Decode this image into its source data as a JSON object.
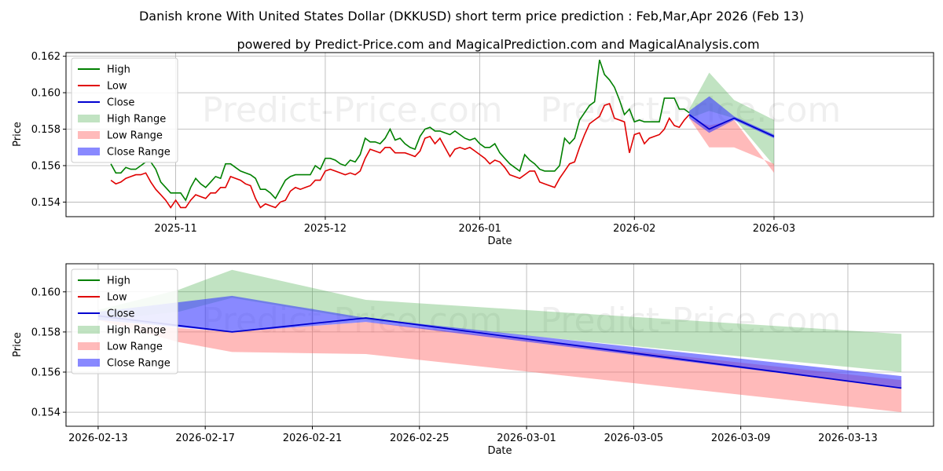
{
  "title": "Danish krone With United States Dollar (DKKUSD) short term price prediction : Feb,Mar,Apr 2026 (Feb 13)",
  "subtitle": "powered by Predict-Price.com and MagicalPrediction.com and MagicalAnalysis.com",
  "watermark": "Predict-Price.com",
  "colors": {
    "high": "#008000",
    "low": "#e00000",
    "close": "#0000d0",
    "high_range": "#4caf50",
    "low_range": "#ff6666",
    "close_range": "#3a3aff"
  },
  "chart_data": [
    {
      "type": "line",
      "name": "history",
      "xlabel": "Date",
      "ylabel": "Price",
      "ylim": [
        0.1532,
        0.1622
      ],
      "yticks": [
        "0.154",
        "0.156",
        "0.158",
        "0.160",
        "0.162"
      ],
      "ytick_values": [
        0.154,
        0.156,
        0.158,
        0.16,
        0.162
      ],
      "xlim_day": [
        -22,
        152
      ],
      "xticks": [
        "2025-11",
        "2025-12",
        "2026-01",
        "2026-02",
        "2026-03"
      ],
      "xtick_days": [
        0,
        30,
        61,
        92,
        120
      ],
      "legend": [
        "High",
        "Low",
        "Close",
        "High Range",
        "Low Range",
        "Close Range"
      ],
      "legend_position": "upper-left",
      "grid": true,
      "high": {
        "day": [
          -13,
          -12,
          -11,
          -10,
          -9,
          -8,
          -7,
          -6,
          -5,
          -4,
          -3,
          -2,
          -1,
          0,
          1,
          2,
          3,
          4,
          5,
          6,
          7,
          8,
          9,
          10,
          11,
          12,
          13,
          14,
          15,
          16,
          17,
          18,
          19,
          20,
          21,
          22,
          23,
          24,
          25,
          26,
          27,
          28,
          29,
          30,
          31,
          32,
          33,
          34,
          35,
          36,
          37,
          38,
          39,
          40,
          41,
          42,
          43,
          44,
          45,
          46,
          47,
          48,
          49,
          50,
          51,
          52,
          53,
          54,
          55,
          56,
          57,
          58,
          59,
          60,
          61,
          62,
          63,
          64,
          65,
          66,
          67,
          68,
          69,
          70,
          71,
          72,
          73,
          74,
          75,
          76,
          77,
          78,
          79,
          80,
          81,
          82,
          83,
          84,
          85,
          86,
          87,
          88,
          89,
          90,
          91,
          92,
          93,
          94,
          95,
          96,
          97,
          98,
          99,
          100,
          101,
          102,
          103
        ],
        "values": [
          0.1561,
          0.1556,
          0.1556,
          0.1559,
          0.1558,
          0.1558,
          0.156,
          0.1562,
          0.1562,
          0.1558,
          0.1551,
          0.1548,
          0.1545,
          0.1545,
          0.1545,
          0.1541,
          0.1548,
          0.1553,
          0.155,
          0.1548,
          0.1551,
          0.1554,
          0.1553,
          0.1561,
          0.1561,
          0.1559,
          0.1557,
          0.1556,
          0.1555,
          0.1553,
          0.1547,
          0.1547,
          0.1545,
          0.1542,
          0.1547,
          0.1552,
          0.1554,
          0.1555,
          0.1555,
          0.1555,
          0.1555,
          0.156,
          0.1558,
          0.1564,
          0.1564,
          0.1563,
          0.1561,
          0.156,
          0.1563,
          0.1562,
          0.1566,
          0.1575,
          0.1573,
          0.1573,
          0.1572,
          0.1575,
          0.158,
          0.1574,
          0.1575,
          0.1572,
          0.157,
          0.1569,
          0.1576,
          0.158,
          0.1581,
          0.1579,
          0.1579,
          0.1578,
          0.1577,
          0.1579,
          0.1577,
          0.1575,
          0.1574,
          0.1575,
          0.1572,
          0.157,
          0.157,
          0.1572,
          0.1567,
          0.1564,
          0.1561,
          0.1559,
          0.1557,
          0.1566,
          0.1563,
          0.1561,
          0.1558,
          0.1557,
          0.1557,
          0.1557,
          0.156,
          0.1575,
          0.1572,
          0.1575,
          0.1585,
          0.1589,
          0.1593,
          0.1595,
          0.1618,
          0.161,
          0.1607,
          0.1603,
          0.1596,
          0.1588,
          0.1591,
          0.1584,
          0.1585,
          0.1584,
          0.1584,
          0.1584,
          0.1584,
          0.1597,
          0.1597,
          0.1597,
          0.1591,
          0.1591,
          0.1589
        ],
        "range_upper_day": [
          103,
          107,
          112,
          120
        ],
        "range_upper": [
          0.1591,
          0.1611,
          0.1596,
          0.1585
        ]
      },
      "low": {
        "day": [
          -13,
          -12,
          -11,
          -10,
          -9,
          -8,
          -7,
          -6,
          -5,
          -4,
          -3,
          -2,
          -1,
          0,
          1,
          2,
          3,
          4,
          5,
          6,
          7,
          8,
          9,
          10,
          11,
          12,
          13,
          14,
          15,
          16,
          17,
          18,
          19,
          20,
          21,
          22,
          23,
          24,
          25,
          26,
          27,
          28,
          29,
          30,
          31,
          32,
          33,
          34,
          35,
          36,
          37,
          38,
          39,
          40,
          41,
          42,
          43,
          44,
          45,
          46,
          47,
          48,
          49,
          50,
          51,
          52,
          53,
          54,
          55,
          56,
          57,
          58,
          59,
          60,
          61,
          62,
          63,
          64,
          65,
          66,
          67,
          68,
          69,
          70,
          71,
          72,
          73,
          74,
          75,
          76,
          77,
          78,
          79,
          80,
          81,
          82,
          83,
          84,
          85,
          86,
          87,
          88,
          89,
          90,
          91,
          92,
          93,
          94,
          95,
          96,
          97,
          98,
          99,
          100,
          101,
          102,
          103
        ],
        "values": [
          0.1552,
          0.155,
          0.1551,
          0.1553,
          0.1554,
          0.1555,
          0.1555,
          0.1556,
          0.1551,
          0.1547,
          0.1544,
          0.1541,
          0.1537,
          0.1541,
          0.1537,
          0.1537,
          0.1541,
          0.1544,
          0.1543,
          0.1542,
          0.1545,
          0.1545,
          0.1548,
          0.1548,
          0.1554,
          0.1553,
          0.1552,
          0.155,
          0.1549,
          0.1542,
          0.1537,
          0.1539,
          0.1538,
          0.1537,
          0.154,
          0.1541,
          0.1546,
          0.1548,
          0.1547,
          0.1548,
          0.1549,
          0.1552,
          0.1552,
          0.1557,
          0.1558,
          0.1557,
          0.1556,
          0.1555,
          0.1556,
          0.1555,
          0.1557,
          0.1564,
          0.1569,
          0.1568,
          0.1567,
          0.157,
          0.157,
          0.1567,
          0.1567,
          0.1567,
          0.1566,
          0.1565,
          0.1568,
          0.1575,
          0.1576,
          0.1572,
          0.1575,
          0.157,
          0.1565,
          0.1569,
          0.157,
          0.1569,
          0.157,
          0.1568,
          0.1566,
          0.1564,
          0.1561,
          0.1563,
          0.1562,
          0.1559,
          0.1555,
          0.1554,
          0.1553,
          0.1555,
          0.1557,
          0.1557,
          0.1551,
          0.155,
          0.1549,
          0.1548,
          0.1553,
          0.1557,
          0.1561,
          0.1562,
          0.157,
          0.1577,
          0.1583,
          0.1585,
          0.1587,
          0.1593,
          0.1594,
          0.1586,
          0.1585,
          0.1584,
          0.1567,
          0.1577,
          0.1578,
          0.1572,
          0.1575,
          0.1576,
          0.1577,
          0.158,
          0.1586,
          0.1582,
          0.1581,
          0.1585,
          0.1588
        ],
        "range_lower_day": [
          103,
          107,
          112,
          120
        ],
        "range_lower": [
          0.1586,
          0.157,
          0.157,
          0.1561
        ]
      },
      "close": {
        "day": [
          103,
          107,
          112,
          120
        ],
        "values": [
          0.1588,
          0.158,
          0.1586,
          0.1576
        ],
        "range_upper": [
          0.159,
          0.1598,
          0.1587,
          0.1577
        ],
        "range_lower": [
          0.1586,
          0.1578,
          0.1585,
          0.1575
        ]
      }
    },
    {
      "type": "line",
      "name": "forecast",
      "xlabel": "Date",
      "ylabel": "Price",
      "ylim": [
        0.1533,
        0.1614
      ],
      "yticks": [
        "0.154",
        "0.156",
        "0.158",
        "0.160"
      ],
      "ytick_values": [
        0.154,
        0.156,
        0.158,
        0.16
      ],
      "xlim_day": [
        -1.2,
        31.2
      ],
      "xticks": [
        "2026-02-13",
        "2026-02-17",
        "2026-02-21",
        "2026-02-25",
        "2026-03-01",
        "2026-03-05",
        "2026-03-09",
        "2026-03-13"
      ],
      "xtick_days": [
        0,
        4,
        8,
        12,
        16,
        20,
        24,
        28
      ],
      "legend": [
        "High",
        "Low",
        "Close",
        "High Range",
        "Low Range",
        "Close Range"
      ],
      "legend_position": "upper-left",
      "grid": true,
      "high_range": {
        "day": [
          0,
          3,
          5,
          10,
          30
        ],
        "upper": [
          0.1591,
          0.1601,
          0.1611,
          0.1596,
          0.1579
        ],
        "lower": [
          0.1586,
          0.159,
          0.1597,
          0.1586,
          0.156
        ]
      },
      "low_range": {
        "day": [
          0,
          3,
          5,
          10,
          30
        ],
        "upper": [
          0.1586,
          0.1582,
          0.158,
          0.1585,
          0.1556
        ],
        "lower": [
          0.1586,
          0.1575,
          0.157,
          0.1569,
          0.154
        ]
      },
      "close_range": {
        "day": [
          0,
          5,
          10,
          30
        ],
        "upper": [
          0.159,
          0.1598,
          0.1587,
          0.1558
        ],
        "lower": [
          0.1586,
          0.158,
          0.1585,
          0.1552
        ]
      },
      "close": {
        "day": [
          0,
          5,
          10,
          30
        ],
        "values": [
          0.1588,
          0.158,
          0.1587,
          0.1552
        ]
      }
    }
  ]
}
